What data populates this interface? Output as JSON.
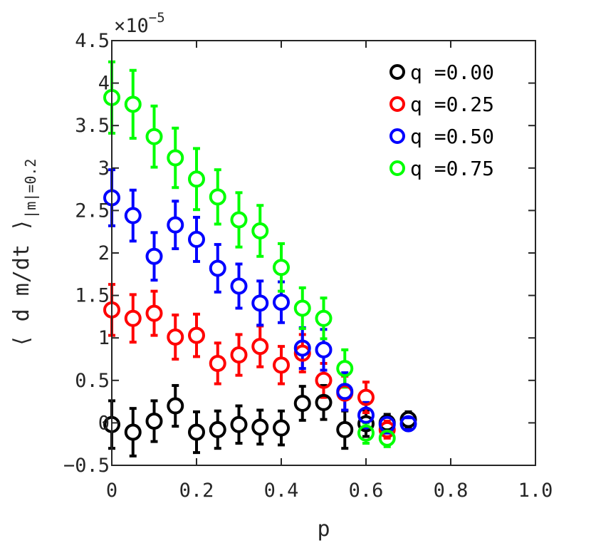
{
  "chart_data": {
    "type": "scatter",
    "title": "",
    "xlabel": "p",
    "ylabel": "⟨ d m/dt ⟩",
    "ylabel_subscript": "|m|=0.2",
    "y_exponent_label": "×10",
    "y_exponent_power": "−5",
    "xlim": [
      0,
      1.0
    ],
    "ylim": [
      -0.5,
      4.5
    ],
    "x_ticks": [
      0,
      0.2,
      0.4,
      0.6,
      0.8,
      1.0
    ],
    "x_tick_labels": [
      "0",
      "0.2",
      "0.4",
      "0.6",
      "0.8",
      "1.0"
    ],
    "y_ticks": [
      -0.5,
      0,
      0.5,
      1,
      1.5,
      2,
      2.5,
      3,
      3.5,
      4,
      4.5
    ],
    "y_tick_labels": [
      "−0.5",
      "0",
      "0.5",
      "1",
      "1.5",
      "2",
      "2.5",
      "3",
      "3.5",
      "4",
      "4.5"
    ],
    "grid": false,
    "legend_position": "top-right",
    "series": [
      {
        "name": "q =0.00",
        "color": "#000000",
        "x": [
          0,
          0.05,
          0.1,
          0.15,
          0.2,
          0.25,
          0.3,
          0.35,
          0.4,
          0.45,
          0.5,
          0.55,
          0.6,
          0.65,
          0.7
        ],
        "y": [
          -0.02,
          -0.11,
          0.02,
          0.2,
          -0.11,
          -0.08,
          -0.02,
          -0.05,
          -0.06,
          0.23,
          0.24,
          -0.08,
          -0.01,
          0.0,
          0.04
        ],
        "err": [
          0.28,
          0.28,
          0.24,
          0.24,
          0.24,
          0.22,
          0.22,
          0.2,
          0.2,
          0.2,
          0.2,
          0.22,
          0.15,
          0.1,
          0.09
        ]
      },
      {
        "name": "q =0.25",
        "color": "#ff0000",
        "x": [
          0,
          0.05,
          0.1,
          0.15,
          0.2,
          0.25,
          0.3,
          0.35,
          0.4,
          0.45,
          0.5,
          0.55,
          0.6,
          0.65
        ],
        "y": [
          1.33,
          1.23,
          1.29,
          1.01,
          1.03,
          0.7,
          0.8,
          0.9,
          0.68,
          0.82,
          0.5,
          0.35,
          0.3,
          -0.08
        ],
        "err": [
          0.3,
          0.28,
          0.26,
          0.26,
          0.25,
          0.24,
          0.24,
          0.24,
          0.22,
          0.22,
          0.2,
          0.2,
          0.18,
          0.1
        ]
      },
      {
        "name": "q =0.50",
        "color": "#0000ff",
        "x": [
          0,
          0.05,
          0.1,
          0.15,
          0.2,
          0.25,
          0.3,
          0.35,
          0.4,
          0.45,
          0.5,
          0.55,
          0.6,
          0.65,
          0.7
        ],
        "y": [
          2.65,
          2.44,
          1.96,
          2.33,
          2.16,
          1.82,
          1.61,
          1.41,
          1.42,
          0.88,
          0.86,
          0.37,
          0.09,
          -0.02,
          -0.01
        ],
        "err": [
          0.33,
          0.3,
          0.28,
          0.28,
          0.26,
          0.28,
          0.26,
          0.26,
          0.24,
          0.24,
          0.24,
          0.22,
          0.15,
          0.1,
          0.07
        ]
      },
      {
        "name": "q =0.75",
        "color": "#00ff00",
        "x": [
          0,
          0.05,
          0.1,
          0.15,
          0.2,
          0.25,
          0.3,
          0.35,
          0.4,
          0.45,
          0.5,
          0.55,
          0.6,
          0.65
        ],
        "y": [
          3.83,
          3.75,
          3.37,
          3.12,
          2.87,
          2.66,
          2.39,
          2.26,
          1.83,
          1.35,
          1.23,
          0.64,
          -0.12,
          -0.18
        ],
        "err": [
          0.42,
          0.4,
          0.36,
          0.35,
          0.36,
          0.32,
          0.32,
          0.3,
          0.28,
          0.24,
          0.24,
          0.22,
          0.12,
          0.1
        ]
      }
    ]
  }
}
